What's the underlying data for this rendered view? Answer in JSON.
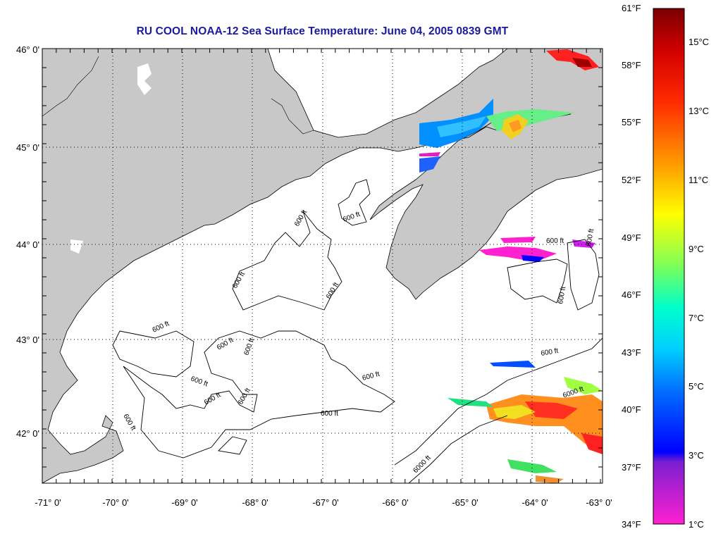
{
  "title": "RU COOL  NOAA-12  Sea Surface Temperature:  June 04, 2005 0839 GMT",
  "map": {
    "lat_labels": [
      "46° 0'",
      "45° 0'",
      "44° 0'",
      "43° 0'",
      "42° 0'"
    ],
    "lon_labels": [
      "-71° 0'",
      "-70° 0'",
      "-69° 0'",
      "-68° 0'",
      "-67° 0'",
      "-66° 0'",
      "-65° 0'",
      "-64° 0'",
      "-63° 0'"
    ],
    "land_color": "#c8c8c8",
    "water_color": "#ffffff",
    "contour_labels": [
      "600 ft",
      "600 ft",
      "600 ft",
      "600 ft",
      "600 ft",
      "600 ft",
      "600 ft",
      "600 ft",
      "600 ft",
      "600 ft",
      "600 ft",
      "600 ft",
      "600 ft",
      "600 ft",
      "6000 ft",
      "6000 ft",
      "600 ft",
      "600 ft",
      "600 ft"
    ]
  },
  "colorbar": {
    "fahrenheit_labels": [
      "61°F",
      "58°F",
      "55°F",
      "52°F",
      "49°F",
      "46°F",
      "43°F",
      "40°F",
      "37°F",
      "34°F"
    ],
    "celsius_labels": [
      "15°C",
      "13°C",
      "11°C",
      "9°C",
      "7°C",
      "5°C",
      "3°C",
      "1°C"
    ],
    "range_f": [
      34,
      61
    ],
    "range_c": [
      1,
      16
    ]
  }
}
